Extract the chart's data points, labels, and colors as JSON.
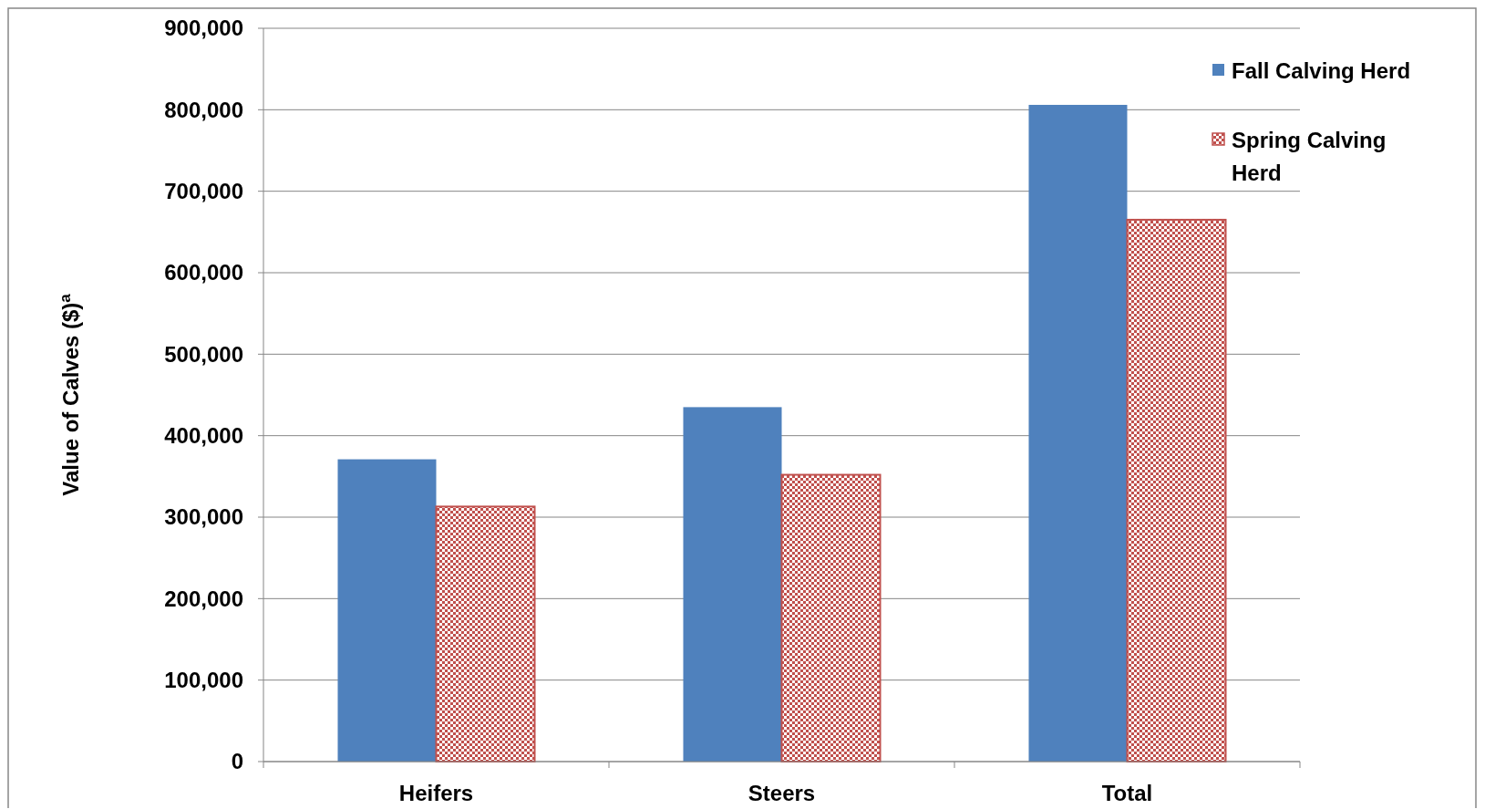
{
  "chart_data": {
    "type": "bar",
    "ylabel": "Value of Calves ($)$^{a}$",
    "categories": [
      "Heifers",
      "Steers",
      "Total"
    ],
    "series": [
      {
        "name": "Fall Calving Herd",
        "color": "#4f81bd",
        "values": [
          371000,
          435000,
          806000
        ]
      },
      {
        "name": "Spring Calving Herd",
        "color": "#c0504d",
        "values": [
          313000,
          352000,
          665000
        ]
      }
    ],
    "ylim": [
      0,
      900000
    ],
    "yticks": [
      {
        "value": 0,
        "label": "0"
      },
      {
        "value": 100000,
        "label": "100,000"
      },
      {
        "value": 200000,
        "label": "200,000"
      },
      {
        "value": 300000,
        "label": "300,000"
      },
      {
        "value": 400000,
        "label": "400,000"
      },
      {
        "value": 500000,
        "label": "500,000"
      },
      {
        "value": 600000,
        "label": "600,000"
      },
      {
        "value": 700000,
        "label": "700,000"
      },
      {
        "value": 800000,
        "label": "800,000"
      },
      {
        "value": 900000,
        "label": "900,000"
      }
    ],
    "grid": "y",
    "legend": "right"
  }
}
